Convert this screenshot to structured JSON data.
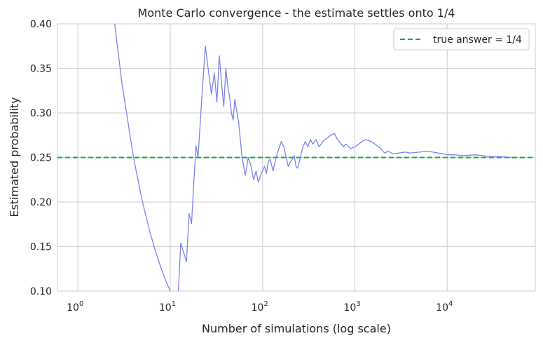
{
  "chart_data": {
    "type": "line",
    "title": "Monte Carlo convergence - the estimate settles onto 1/4",
    "xlabel": "Number of simulations (log scale)",
    "ylabel": "Estimated probability",
    "xscale": "log",
    "xlim": [
      0.6,
      90000
    ],
    "ylim": [
      0.1,
      0.4
    ],
    "grid": true,
    "legend_position": "top-right",
    "xticks": [
      {
        "value": 1,
        "base": "10",
        "exp": "0"
      },
      {
        "value": 10,
        "base": "10",
        "exp": "1"
      },
      {
        "value": 100,
        "base": "10",
        "exp": "2"
      },
      {
        "value": 1000,
        "base": "10",
        "exp": "3"
      },
      {
        "value": 10000,
        "base": "10",
        "exp": "4"
      }
    ],
    "yticks": [
      "0.10",
      "0.15",
      "0.20",
      "0.25",
      "0.30",
      "0.35",
      "0.40"
    ],
    "reference_line": {
      "label": "true answer = 1/4",
      "y": 0.25,
      "color": "#1aa64a",
      "style": "dashed"
    },
    "series": [
      {
        "color": "#7b83f0",
        "x": [
          2,
          2.5,
          3,
          4,
          5,
          6,
          7,
          8,
          9,
          10,
          11,
          12,
          13,
          14,
          15,
          16,
          17,
          18,
          19,
          20,
          22,
          24,
          26,
          28,
          30,
          32,
          34,
          36,
          38,
          40,
          42,
          44,
          46,
          48,
          50,
          55,
          60,
          65,
          70,
          75,
          80,
          85,
          90,
          95,
          100,
          105,
          110,
          115,
          120,
          125,
          130,
          140,
          150,
          160,
          170,
          180,
          190,
          200,
          210,
          220,
          230,
          240,
          250,
          270,
          290,
          310,
          330,
          350,
          380,
          410,
          450,
          500,
          550,
          600,
          650,
          700,
          750,
          800,
          900,
          1000,
          1100,
          1200,
          1300,
          1500,
          1700,
          1900,
          2100,
          2300,
          2600,
          3000,
          3500,
          4000,
          5000,
          6000,
          7000,
          8000,
          9000,
          10000,
          12000,
          15000,
          20000,
          30000,
          40000,
          50000
        ],
        "y": [
          0.5,
          0.4,
          0.333,
          0.25,
          0.2,
          0.167,
          0.143,
          0.125,
          0.111,
          0.1,
          0.09,
          0.083,
          0.154,
          0.143,
          0.133,
          0.187,
          0.176,
          0.222,
          0.263,
          0.25,
          0.318,
          0.375,
          0.346,
          0.321,
          0.345,
          0.312,
          0.364,
          0.333,
          0.307,
          0.35,
          0.33,
          0.318,
          0.3,
          0.292,
          0.315,
          0.29,
          0.25,
          0.23,
          0.25,
          0.24,
          0.225,
          0.235,
          0.222,
          0.23,
          0.235,
          0.24,
          0.232,
          0.245,
          0.248,
          0.242,
          0.235,
          0.25,
          0.26,
          0.268,
          0.262,
          0.25,
          0.24,
          0.245,
          0.248,
          0.252,
          0.24,
          0.238,
          0.245,
          0.26,
          0.268,
          0.262,
          0.27,
          0.265,
          0.27,
          0.262,
          0.268,
          0.272,
          0.275,
          0.277,
          0.27,
          0.266,
          0.262,
          0.265,
          0.26,
          0.262,
          0.265,
          0.268,
          0.27,
          0.268,
          0.264,
          0.26,
          0.255,
          0.257,
          0.254,
          0.255,
          0.256,
          0.255,
          0.256,
          0.257,
          0.256,
          0.255,
          0.254,
          0.253,
          0.253,
          0.252,
          0.253,
          0.251,
          0.251,
          0.25
        ]
      }
    ]
  }
}
